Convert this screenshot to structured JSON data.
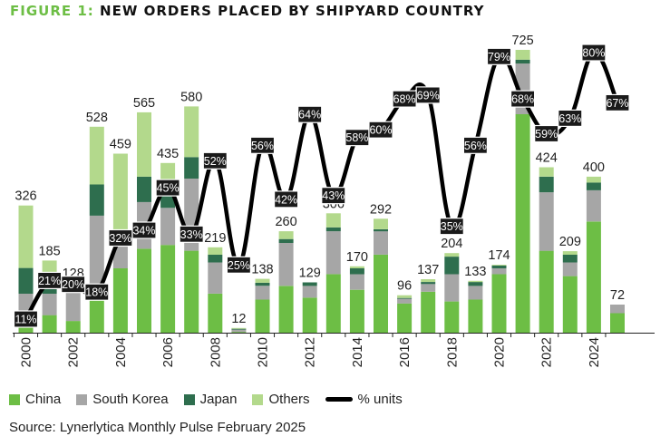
{
  "title_prefix": "FIGURE 1:",
  "title_main": "NEW ORDERS PLACED BY SHIPYARD COUNTRY",
  "source": "Source: Lynerlytica Monthly Pulse February 2025",
  "colors": {
    "China": "#6dbe45",
    "South Korea": "#a6a6a6",
    "Japan": "#2e6e4e",
    "Others": "#b3d98c",
    "line": "#000000",
    "badge": "#1a1a1a"
  },
  "legend": [
    {
      "label": "China",
      "kind": "bar"
    },
    {
      "label": "South Korea",
      "kind": "bar"
    },
    {
      "label": "Japan",
      "kind": "bar"
    },
    {
      "label": "Others",
      "kind": "bar"
    },
    {
      "label": "% units",
      "kind": "line"
    }
  ],
  "chart_data": {
    "type": "bar",
    "stacked": true,
    "categories": [
      "2000",
      "2001",
      "2002",
      "2003",
      "2004",
      "2005",
      "2006",
      "2007",
      "2008",
      "2009",
      "2010",
      "2011",
      "2012",
      "2013",
      "2014",
      "2015",
      "2016",
      "2017",
      "2018",
      "2019",
      "2020",
      "2021",
      "2022",
      "2023",
      "2024",
      "2025"
    ],
    "x_tick_labels": [
      "2000",
      "2002",
      "2004",
      "2006",
      "2008",
      "2010",
      "2012",
      "2014",
      "2016",
      "2018",
      "2020",
      "2022",
      "2024"
    ],
    "totals": [
      326,
      185,
      128,
      528,
      459,
      565,
      435,
      580,
      219,
      12,
      138,
      260,
      129,
      306,
      170,
      292,
      96,
      137,
      204,
      133,
      174,
      725,
      424,
      209,
      400,
      72
    ],
    "series": [
      {
        "name": "China",
        "values": [
          40,
          45,
          30,
          105,
          165,
          215,
          225,
          210,
          100,
          2,
          85,
          120,
          90,
          150,
          110,
          200,
          75,
          105,
          80,
          85,
          150,
          560,
          210,
          145,
          285,
          50
        ]
      },
      {
        "name": "South Korea",
        "values": [
          60,
          55,
          75,
          195,
          90,
          120,
          95,
          185,
          80,
          6,
          35,
          110,
          30,
          110,
          40,
          60,
          12,
          20,
          70,
          35,
          15,
          130,
          150,
          35,
          80,
          22
        ]
      },
      {
        "name": "Japan",
        "values": [
          66,
          30,
          5,
          80,
          0,
          65,
          55,
          55,
          20,
          2,
          8,
          10,
          9,
          10,
          15,
          5,
          2,
          5,
          45,
          10,
          7,
          10,
          40,
          20,
          20,
          0
        ]
      },
      {
        "name": "Others",
        "values": [
          160,
          55,
          18,
          148,
          204,
          165,
          60,
          130,
          19,
          2,
          10,
          20,
          0,
          36,
          5,
          27,
          7,
          7,
          9,
          3,
          2,
          25,
          24,
          9,
          15,
          0
        ]
      }
    ],
    "line_series": {
      "name": "% units",
      "values": [
        11,
        21,
        20,
        18,
        32,
        34,
        45,
        33,
        52,
        25,
        56,
        42,
        64,
        43,
        58,
        60,
        68,
        69,
        35,
        56,
        79,
        68,
        59,
        63,
        80,
        67
      ],
      "labels": [
        "11%",
        "21%",
        "20%",
        "18%",
        "32%",
        "34%",
        "45%",
        "33%",
        "52%",
        "25%",
        "56%",
        "42%",
        "64%",
        "43%",
        "58%",
        "60%",
        "68%",
        "69%",
        "35%",
        "56%",
        "79%",
        "68%",
        "59%",
        "63%",
        "80%",
        "67%"
      ]
    },
    "ylim": [
      0,
      750
    ],
    "ylim_pct": [
      0,
      90
    ],
    "grid": false,
    "legend_position": "bottom"
  }
}
